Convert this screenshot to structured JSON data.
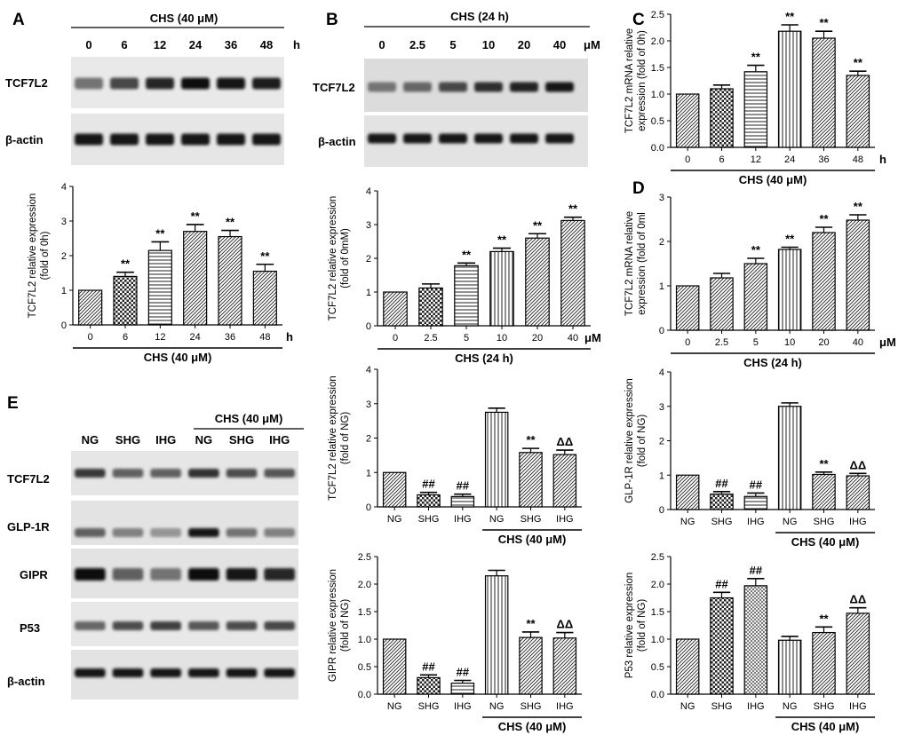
{
  "panels": {
    "A": {
      "letter": "A",
      "header": "CHS (40 μM)",
      "lanes": [
        "0",
        "6",
        "12",
        "24",
        "36",
        "48"
      ],
      "unit": "h",
      "blots": [
        "TCF7L2",
        "β-actin"
      ],
      "lane_intensity": [
        0.55,
        0.72,
        0.85,
        0.95,
        0.92,
        0.88
      ]
    },
    "B": {
      "letter": "B",
      "header": "CHS (24 h)",
      "lanes": [
        "0",
        "2.5",
        "5",
        "10",
        "20",
        "40"
      ],
      "unit": "μM",
      "blots": [
        "TCF7L2",
        "β-actin"
      ],
      "lane_intensity": [
        0.55,
        0.6,
        0.72,
        0.82,
        0.86,
        0.9
      ]
    },
    "C": {
      "letter": "C"
    },
    "D": {
      "letter": "D"
    },
    "E": {
      "letter": "E",
      "header": "CHS (40 μM)",
      "lanes": [
        "NG",
        "SHG",
        "IHG",
        "NG",
        "SHG",
        "IHG"
      ],
      "blots": [
        "TCF7L2",
        "GLP-1R",
        "GIPR",
        "P53",
        "β-actin"
      ],
      "lane_intensity": {
        "TCF7L2": [
          0.78,
          0.62,
          0.62,
          0.8,
          0.7,
          0.66
        ],
        "GLP-1R": [
          0.62,
          0.5,
          0.42,
          0.9,
          0.55,
          0.5
        ],
        "GIPR": [
          0.95,
          0.62,
          0.55,
          0.95,
          0.9,
          0.85
        ],
        "P53": [
          0.6,
          0.7,
          0.75,
          0.65,
          0.7,
          0.72
        ],
        "β-actin": [
          0.9,
          0.9,
          0.9,
          0.9,
          0.9,
          0.9
        ]
      }
    }
  },
  "chart_data": [
    {
      "id": "A",
      "type": "bar",
      "categories": [
        "0",
        "6",
        "12",
        "24",
        "36",
        "48"
      ],
      "values": [
        1.0,
        1.4,
        2.15,
        2.7,
        2.55,
        1.55
      ],
      "errors": [
        0,
        0.12,
        0.25,
        0.2,
        0.18,
        0.2
      ],
      "labels": [
        "",
        "**",
        "**",
        "**",
        "**",
        "**"
      ],
      "patterns": [
        "diag",
        "checker",
        "horiz",
        "diag",
        "diag",
        "diag"
      ],
      "ylabel": "TCF7L2 relative expression",
      "ylabel2": "(fold of 0h)",
      "ylim": [
        0,
        4
      ],
      "yticks": [
        "0",
        "1",
        "2",
        "3",
        "4"
      ],
      "unit": "h",
      "group_label": "CHS (40 μM)"
    },
    {
      "id": "B",
      "type": "bar",
      "categories": [
        "0",
        "2.5",
        "5",
        "10",
        "20",
        "40"
      ],
      "values": [
        1.0,
        1.12,
        1.78,
        2.2,
        2.6,
        3.12
      ],
      "errors": [
        0,
        0.12,
        0.08,
        0.1,
        0.13,
        0.1
      ],
      "labels": [
        "",
        "",
        "**",
        "**",
        "**",
        "**"
      ],
      "patterns": [
        "diag",
        "checker",
        "horiz",
        "vert",
        "diag",
        "diag"
      ],
      "ylabel": "TCF7L2 relative expression",
      "ylabel2": "(fold of 0mM)",
      "ylim": [
        0,
        4
      ],
      "yticks": [
        "0",
        "1",
        "2",
        "3",
        "4"
      ],
      "unit": "μM",
      "group_label": "CHS (24 h)"
    },
    {
      "id": "C",
      "type": "bar",
      "categories": [
        "0",
        "6",
        "12",
        "24",
        "36",
        "48"
      ],
      "values": [
        1.0,
        1.1,
        1.42,
        2.18,
        2.05,
        1.35
      ],
      "errors": [
        0,
        0.07,
        0.12,
        0.12,
        0.13,
        0.08
      ],
      "labels": [
        "",
        "",
        "**",
        "**",
        "**",
        "**"
      ],
      "patterns": [
        "diag",
        "checker",
        "horiz",
        "vert",
        "diag",
        "diag"
      ],
      "ylabel": "TCF7L2 mRNA relative",
      "ylabel2": "expression (fold of 0h)",
      "ylim": [
        0,
        2.5
      ],
      "yticks": [
        "0.0",
        "0.5",
        "1.0",
        "1.5",
        "2.0",
        "2.5"
      ],
      "unit": "h",
      "group_label": "CHS (40 μM)"
    },
    {
      "id": "D",
      "type": "bar",
      "categories": [
        "0",
        "2.5",
        "5",
        "10",
        "20",
        "40"
      ],
      "values": [
        1.0,
        1.18,
        1.5,
        1.82,
        2.2,
        2.48
      ],
      "errors": [
        0,
        0.1,
        0.12,
        0.05,
        0.12,
        0.12
      ],
      "labels": [
        "",
        "",
        "**",
        "**",
        "**",
        "**"
      ],
      "patterns": [
        "diag",
        "diag",
        "diag",
        "vert",
        "diag",
        "diag"
      ],
      "ylabel": "TCF7L2 mRNA relative",
      "ylabel2": "expression (fold of 0ml",
      "ylim": [
        0,
        3
      ],
      "yticks": [
        "0",
        "1",
        "2",
        "3"
      ],
      "unit": "μM",
      "group_label": "CHS (24 h)"
    },
    {
      "id": "E1",
      "type": "bar",
      "categories": [
        "NG",
        "SHG",
        "IHG",
        "NG",
        "SHG",
        "IHG"
      ],
      "values": [
        1.0,
        0.35,
        0.3,
        2.75,
        1.58,
        1.52
      ],
      "errors": [
        0,
        0.07,
        0.07,
        0.12,
        0.12,
        0.13
      ],
      "labels": [
        "",
        "##",
        "##",
        "",
        "**",
        "ΔΔ"
      ],
      "patterns": [
        "diag",
        "checker",
        "horiz",
        "vert",
        "diag",
        "diag"
      ],
      "ylabel": "TCF7L2 relative expression",
      "ylabel2": "(fold of NG)",
      "ylim": [
        0,
        4
      ],
      "yticks": [
        "0",
        "1",
        "2",
        "3",
        "4"
      ],
      "unit": "",
      "group_label": "CHS (40 μM)",
      "group_start": 3
    },
    {
      "id": "E2",
      "type": "bar",
      "categories": [
        "NG",
        "SHG",
        "IHG",
        "NG",
        "SHG",
        "IHG"
      ],
      "values": [
        1.0,
        0.45,
        0.38,
        3.0,
        1.02,
        0.98
      ],
      "errors": [
        0,
        0.07,
        0.1,
        0.1,
        0.07,
        0.07
      ],
      "labels": [
        "",
        "##",
        "##",
        "",
        "**",
        "ΔΔ"
      ],
      "patterns": [
        "diag",
        "checker",
        "horiz",
        "vert",
        "diag",
        "diag"
      ],
      "ylabel": "GLP-1R relative expression",
      "ylabel2": "(fold of NG)",
      "ylim": [
        0,
        4
      ],
      "yticks": [
        "0",
        "1",
        "2",
        "3",
        "4"
      ],
      "unit": "",
      "group_label": "CHS (40 μM)",
      "group_start": 3
    },
    {
      "id": "E3",
      "type": "bar",
      "categories": [
        "NG",
        "SHG",
        "IHG",
        "NG",
        "SHG",
        "IHG"
      ],
      "values": [
        1.0,
        0.3,
        0.2,
        2.15,
        1.03,
        1.02
      ],
      "errors": [
        0,
        0.05,
        0.05,
        0.1,
        0.1,
        0.1
      ],
      "labels": [
        "",
        "##",
        "##",
        "",
        "**",
        "ΔΔ"
      ],
      "patterns": [
        "diag",
        "checker",
        "horiz",
        "vert",
        "diag",
        "diag"
      ],
      "ylabel": "GIPR relative expression",
      "ylabel2": "(fold of NG)",
      "ylim": [
        0,
        2.5
      ],
      "yticks": [
        "0.0",
        "0.5",
        "1.0",
        "1.5",
        "2.0",
        "2.5"
      ],
      "unit": "",
      "group_label": "CHS (40 μM)",
      "group_start": 3
    },
    {
      "id": "E4",
      "type": "bar",
      "categories": [
        "NG",
        "SHG",
        "IHG",
        "NG",
        "SHG",
        "IHG"
      ],
      "values": [
        1.0,
        1.75,
        1.97,
        0.98,
        1.12,
        1.47
      ],
      "errors": [
        0,
        0.1,
        0.13,
        0.07,
        0.1,
        0.1
      ],
      "labels": [
        "",
        "##",
        "##",
        "",
        "**",
        "ΔΔ"
      ],
      "patterns": [
        "diag",
        "checker",
        "dots",
        "vert",
        "diag",
        "diag"
      ],
      "ylabel": "P53 relative expression",
      "ylabel2": "(fold of NG)",
      "ylim": [
        0,
        2.5
      ],
      "yticks": [
        "0.0",
        "0.5",
        "1.0",
        "1.5",
        "2.0",
        "2.5"
      ],
      "unit": "",
      "group_label": "CHS (40 μM)",
      "group_start": 3
    }
  ]
}
